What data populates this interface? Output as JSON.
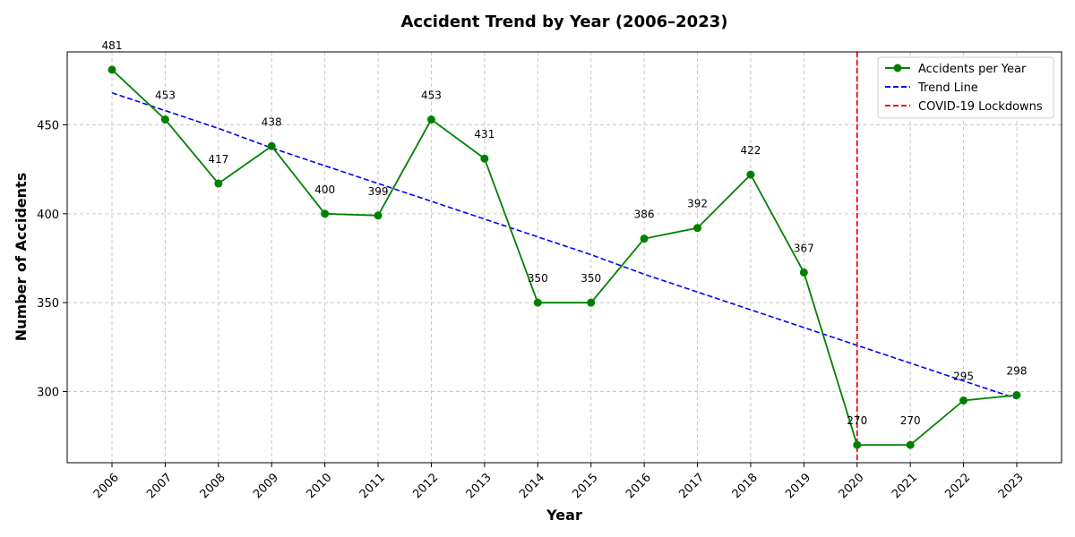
{
  "chart_data": {
    "type": "line",
    "title": "Accident Trend by Year (2006–2023)",
    "xlabel": "Year",
    "ylabel": "Number of Accidents",
    "categories": [
      "2006",
      "2007",
      "2008",
      "2009",
      "2010",
      "2011",
      "2012",
      "2013",
      "2014",
      "2015",
      "2016",
      "2017",
      "2018",
      "2019",
      "2020",
      "2021",
      "2022",
      "2023"
    ],
    "series": [
      {
        "name": "Accidents per Year",
        "color": "#008000",
        "style": "solid",
        "marker": "circle",
        "values": [
          481,
          453,
          417,
          438,
          400,
          399,
          453,
          431,
          350,
          350,
          386,
          392,
          422,
          367,
          270,
          270,
          295,
          298
        ]
      },
      {
        "name": "Trend Line",
        "color": "#0000ff",
        "style": "dashed",
        "values": [
          468,
          458,
          448,
          437,
          427,
          417,
          407,
          397,
          387,
          377,
          366,
          356,
          346,
          336,
          326,
          316,
          306,
          296
        ]
      }
    ],
    "data_labels": [
      "481",
      "453",
      "417",
      "438",
      "400",
      "399",
      "453",
      "431",
      "350",
      "350",
      "386",
      "392",
      "422",
      "367",
      "270",
      "270",
      "295",
      "298"
    ],
    "annotations": [
      {
        "name": "COVID-19 Lockdowns",
        "type": "vertical-line",
        "x": "2020",
        "color": "#ff0000",
        "style": "dashed"
      }
    ],
    "yticks": [
      300,
      350,
      400,
      450
    ],
    "ylim": [
      260,
      491
    ],
    "grid": true,
    "legend": {
      "position": "top-right",
      "entries": [
        "Accidents per Year",
        "Trend Line",
        "COVID-19 Lockdowns"
      ]
    }
  }
}
